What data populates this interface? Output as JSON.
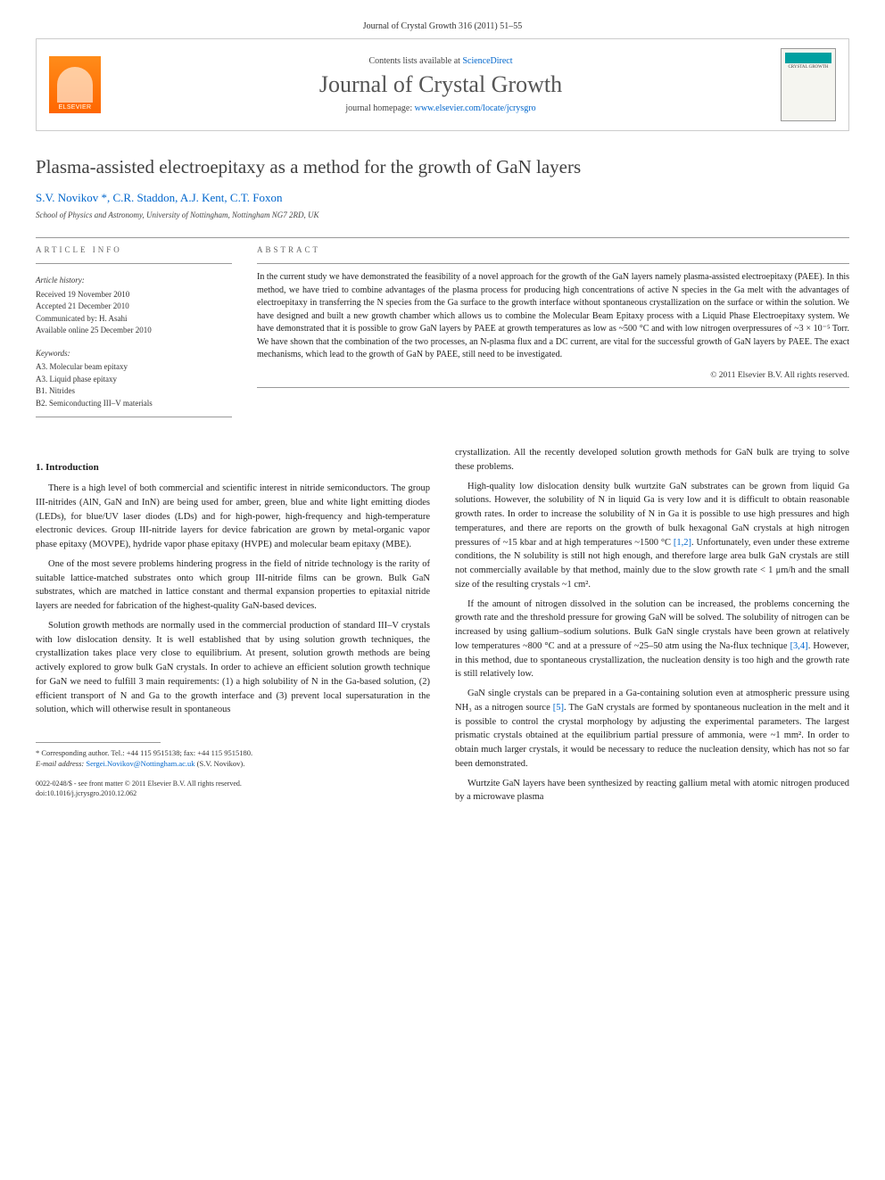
{
  "journal_header": "Journal of Crystal Growth 316 (2011) 51–55",
  "header": {
    "elsevier": "ELSEVIER",
    "contents_prefix": "Contents lists available at ",
    "contents_link": "ScienceDirect",
    "journal_title": "Journal of Crystal Growth",
    "homepage_prefix": "journal homepage: ",
    "homepage_url": "www.elsevier.com/locate/jcrysgro",
    "cover_text": "CRYSTAL GROWTH"
  },
  "article": {
    "title": "Plasma-assisted electroepitaxy as a method for the growth of GaN layers",
    "authors": "S.V. Novikov *, C.R. Staddon, A.J. Kent, C.T. Foxon",
    "affiliation": "School of Physics and Astronomy, University of Nottingham, Nottingham NG7 2RD, UK"
  },
  "info": {
    "heading": "ARTICLE INFO",
    "history_label": "Article history:",
    "received": "Received 19 November 2010",
    "accepted": "Accepted 21 December 2010",
    "communicated": "Communicated by: H. Asahi",
    "available": "Available online 25 December 2010",
    "keywords_label": "Keywords:",
    "keywords": [
      "A3. Molecular beam epitaxy",
      "A3. Liquid phase epitaxy",
      "B1. Nitrides",
      "B2. Semiconducting III–V materials"
    ]
  },
  "abstract": {
    "heading": "ABSTRACT",
    "text": "In the current study we have demonstrated the feasibility of a novel approach for the growth of the GaN layers namely plasma-assisted electroepitaxy (PAEE). In this method, we have tried to combine advantages of the plasma process for producing high concentrations of active N species in the Ga melt with the advantages of electroepitaxy in transferring the N species from the Ga surface to the growth interface without spontaneous crystallization on the surface or within the solution. We have designed and built a new growth chamber which allows us to combine the Molecular Beam Epitaxy process with a Liquid Phase Electroepitaxy system. We have demonstrated that it is possible to grow GaN layers by PAEE at growth temperatures as low as ~500 °C and with low nitrogen overpressures of ~3 × 10⁻⁵ Torr. We have shown that the combination of the two processes, an N-plasma flux and a DC current, are vital for the successful growth of GaN layers by PAEE. The exact mechanisms, which lead to the growth of GaN by PAEE, still need to be investigated.",
    "copyright": "© 2011 Elsevier B.V. All rights reserved."
  },
  "body": {
    "section_number": "1.",
    "section_title": "Introduction",
    "col1": [
      "There is a high level of both commercial and scientific interest in nitride semiconductors. The group III-nitrides (AlN, GaN and InN) are being used for amber, green, blue and white light emitting diodes (LEDs), for blue/UV laser diodes (LDs) and for high-power, high-frequency and high-temperature electronic devices. Group III-nitride layers for device fabrication are grown by metal-organic vapor phase epitaxy (MOVPE), hydride vapor phase epitaxy (HVPE) and molecular beam epitaxy (MBE).",
      "One of the most severe problems hindering progress in the field of nitride technology is the rarity of suitable lattice-matched substrates onto which group III-nitride films can be grown. Bulk GaN substrates, which are matched in lattice constant and thermal expansion properties to epitaxial nitride layers are needed for fabrication of the highest-quality GaN-based devices.",
      "Solution growth methods are normally used in the commercial production of standard III–V crystals with low dislocation density. It is well established that by using solution growth techniques, the crystallization takes place very close to equilibrium. At present, solution growth methods are being actively explored to grow bulk GaN crystals. In order to achieve an efficient solution growth technique for GaN we need to fulfill 3 main requirements: (1) a high solubility of N in the Ga-based solution, (2) efficient transport of N and Ga to the growth interface and (3) prevent local supersaturation in the solution, which will otherwise result in spontaneous"
    ],
    "col2": [
      "crystallization. All the recently developed solution growth methods for GaN bulk are trying to solve these problems.",
      "High-quality low dislocation density bulk wurtzite GaN substrates can be grown from liquid Ga solutions. However, the solubility of N in liquid Ga is very low and it is difficult to obtain reasonable growth rates. In order to increase the solubility of N in Ga it is possible to use high pressures and high temperatures, and there are reports on the growth of bulk hexagonal GaN crystals at high nitrogen pressures of ~15 kbar and at high temperatures ~1500 °C [1,2]. Unfortunately, even under these extreme conditions, the N solubility is still not high enough, and therefore large area bulk GaN crystals are still not commercially available by that method, mainly due to the slow growth rate < 1 μm/h and the small size of the resulting crystals ~1 cm².",
      "If the amount of nitrogen dissolved in the solution can be increased, the problems concerning the growth rate and the threshold pressure for growing GaN will be solved. The solubility of nitrogen can be increased by using gallium–sodium solutions. Bulk GaN single crystals have been grown at relatively low temperatures ~800 °C and at a pressure of ~25–50 atm using the Na-flux technique [3,4]. However, in this method, due to spontaneous crystallization, the nucleation density is too high and the growth rate is still relatively low.",
      "GaN single crystals can be prepared in a Ga-containing solution even at atmospheric pressure using NH₃ as a nitrogen source [5]. The GaN crystals are formed by spontaneous nucleation in the melt and it is possible to control the crystal morphology by adjusting the experimental parameters. The largest prismatic crystals obtained at the equilibrium partial pressure of ammonia, were ~1 mm². In order to obtain much larger crystals, it would be necessary to reduce the nucleation density, which has not so far been demonstrated.",
      "Wurtzite GaN layers have been synthesized by reacting gallium metal with atomic nitrogen produced by a microwave plasma"
    ]
  },
  "footnote": {
    "corresponding": "* Corresponding author. Tel.: +44 115 9515138; fax: +44 115 9515180.",
    "email_label": "E-mail address:",
    "email": "Sergei.Novikov@Nottingham.ac.uk",
    "email_suffix": "(S.V. Novikov)."
  },
  "imprint": {
    "issn": "0022-0248/$ - see front matter © 2011 Elsevier B.V. All rights reserved.",
    "doi": "doi:10.1016/j.jcrysgro.2010.12.062"
  },
  "colors": {
    "link": "#0066cc",
    "elsevier_orange": "#ff6600",
    "text": "#333333",
    "heading": "#404040",
    "divider": "#999999"
  },
  "typography": {
    "title_fontsize": 21,
    "journal_title_fontsize": 26,
    "body_fontsize": 10.5,
    "abstract_fontsize": 10,
    "info_fontsize": 9,
    "footnote_fontsize": 8.5
  }
}
